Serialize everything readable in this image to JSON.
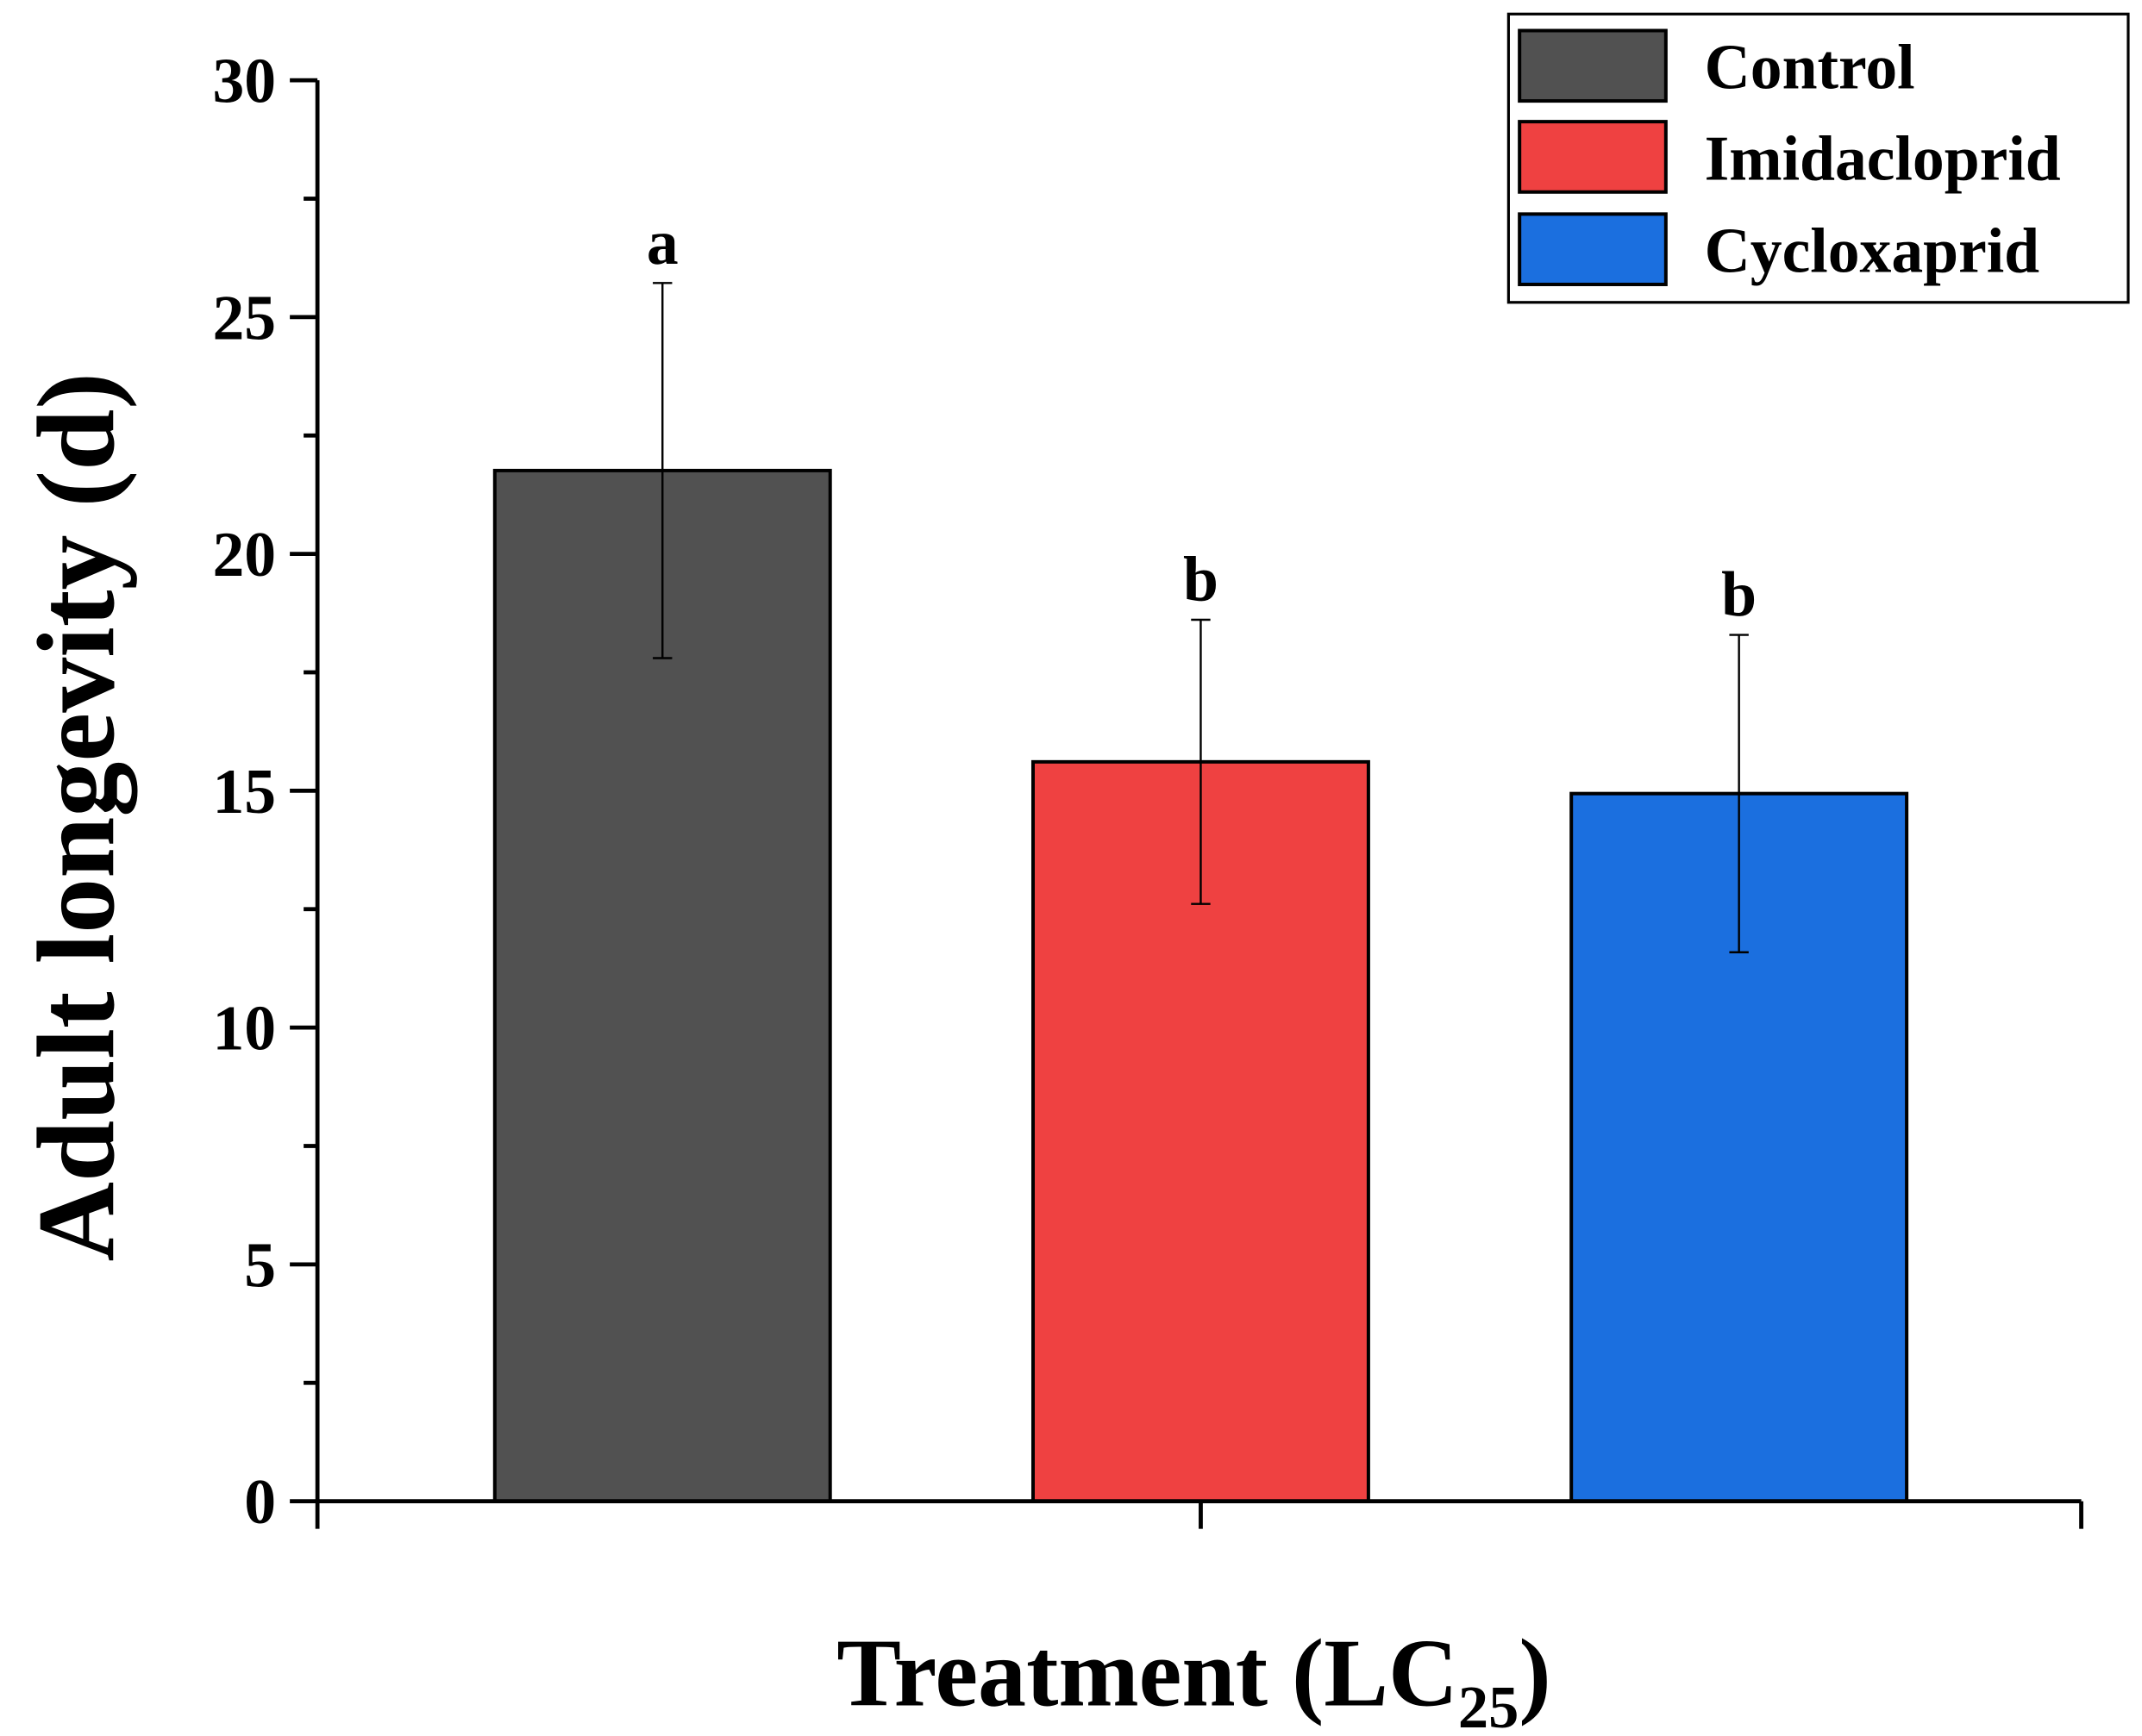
{
  "chart_data": {
    "type": "bar",
    "title": "",
    "xlabel": "Treatment (LC",
    "xlabel_sub": "25",
    "xlabel_close": ")",
    "ylabel": "Adult longevity (d)",
    "ylim": [
      0,
      30
    ],
    "yticks": [
      "0",
      "5",
      "10",
      "15",
      "20",
      "25",
      "30"
    ],
    "categories": [
      "Control",
      "Imidacloprid",
      "Cycloxaprid"
    ],
    "values": [
      21.76,
      15.61,
      14.94
    ],
    "errors": [
      3.96,
      3.0,
      3.35
    ],
    "significance_letters": [
      "a",
      "b",
      "b"
    ],
    "colors": [
      "#515151",
      "#ef4141",
      "#1b6fdf"
    ],
    "legend": {
      "placement": "top-right",
      "entries": [
        "Control",
        "Imidacloprid",
        "Cycloxaprid"
      ]
    },
    "grid": false
  }
}
